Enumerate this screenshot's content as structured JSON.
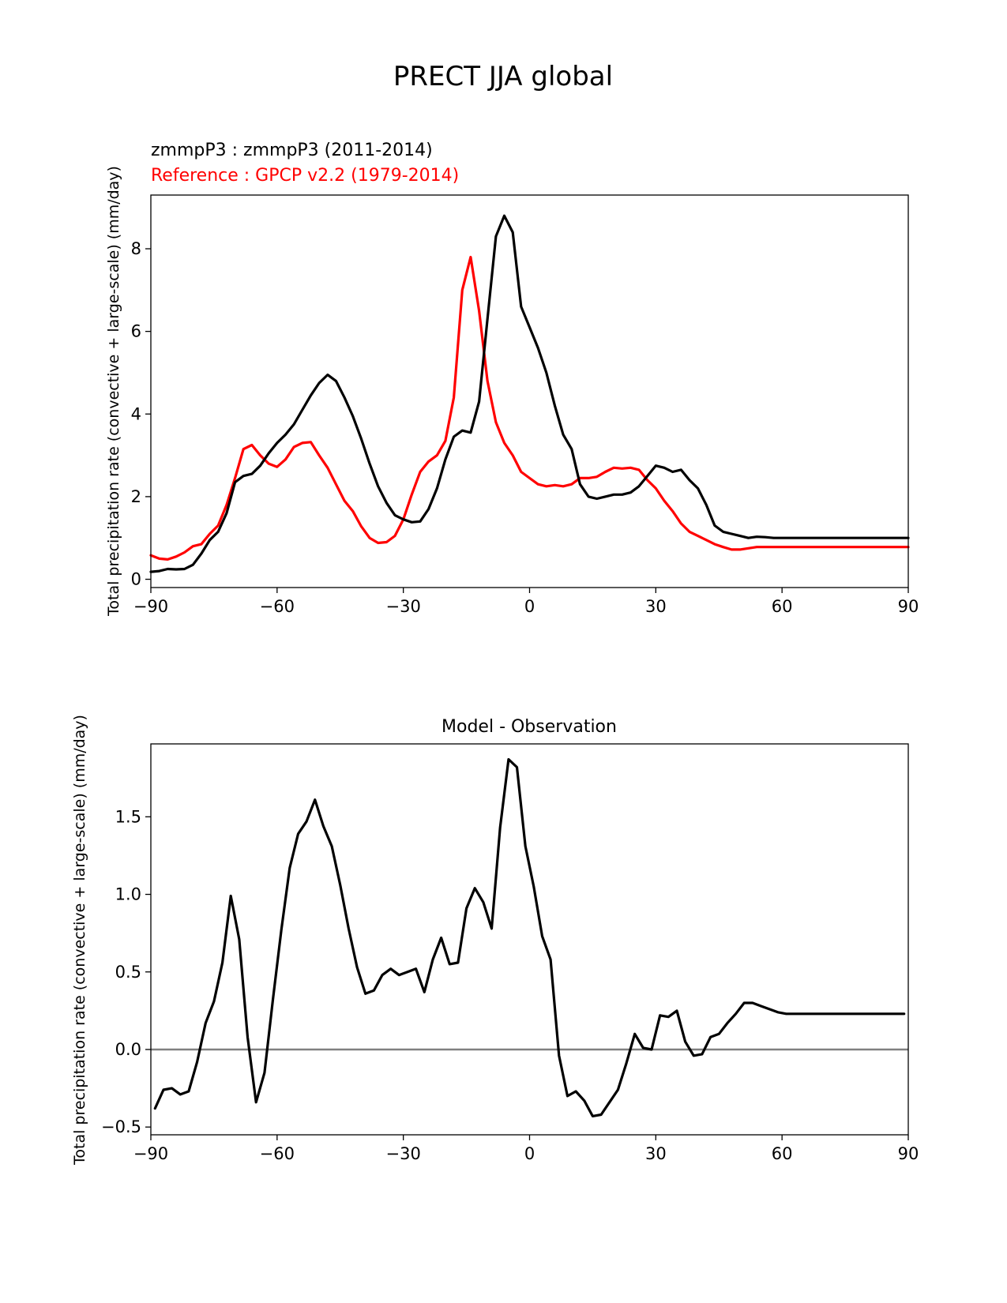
{
  "figure_title": "PRECT JJA global",
  "chart_data": [
    {
      "type": "line",
      "model_label": "zmmpP3 : zmmpP3 (2011-2014)",
      "reference_label": "Reference : GPCP v2.2 (1979-2014)",
      "ylabel": "Total precipitation rate (convective + large-scale) (mm/day)",
      "xlabel": "",
      "xlim": [
        -90,
        90
      ],
      "ylim": [
        -0.2,
        9.3
      ],
      "xticks": [
        -90,
        -60,
        -30,
        0,
        30,
        60,
        90
      ],
      "xtick_labels": [
        "−90",
        "−60",
        "−30",
        "0",
        "30",
        "60",
        "90"
      ],
      "yticks": [
        0,
        2,
        4,
        6,
        8
      ],
      "ytick_labels": [
        "0",
        "2",
        "4",
        "6",
        "8"
      ],
      "series": [
        {
          "name": "zmmpP3 (2011-2014)",
          "color": "#000000",
          "x": [
            -90,
            -88,
            -86,
            -84,
            -82,
            -80,
            -78,
            -76,
            -74,
            -72,
            -70,
            -68,
            -66,
            -64,
            -62,
            -60,
            -58,
            -56,
            -54,
            -52,
            -50,
            -48,
            -46,
            -44,
            -42,
            -40,
            -38,
            -36,
            -34,
            -32,
            -30,
            -28,
            -26,
            -24,
            -22,
            -20,
            -18,
            -16,
            -14,
            -12,
            -10,
            -8,
            -6,
            -4,
            -2,
            0,
            2,
            4,
            6,
            8,
            10,
            12,
            14,
            16,
            18,
            20,
            22,
            24,
            26,
            28,
            30,
            32,
            34,
            36,
            38,
            40,
            42,
            44,
            46,
            48,
            50,
            52,
            54,
            56,
            58,
            60,
            62,
            64,
            66,
            68,
            70,
            72,
            74,
            76,
            78,
            80,
            82,
            84,
            86,
            88,
            90
          ],
          "y": [
            0.18,
            0.2,
            0.25,
            0.24,
            0.25,
            0.35,
            0.62,
            0.95,
            1.15,
            1.6,
            2.35,
            2.5,
            2.55,
            2.75,
            3.05,
            3.3,
            3.5,
            3.75,
            4.1,
            4.45,
            4.75,
            4.95,
            4.8,
            4.4,
            3.95,
            3.4,
            2.8,
            2.25,
            1.85,
            1.55,
            1.45,
            1.38,
            1.4,
            1.7,
            2.2,
            2.9,
            3.45,
            3.6,
            3.55,
            4.3,
            6.3,
            8.3,
            8.8,
            8.4,
            6.6,
            6.1,
            5.6,
            5.0,
            4.2,
            3.5,
            3.15,
            2.3,
            2.0,
            1.95,
            2.0,
            2.05,
            2.05,
            2.1,
            2.25,
            2.5,
            2.75,
            2.7,
            2.6,
            2.65,
            2.4,
            2.2,
            1.8,
            1.3,
            1.15,
            1.1,
            1.05,
            1.0,
            1.03,
            1.02,
            1.0,
            1.0,
            1.0,
            1.0,
            1.0,
            1.0,
            1.0,
            1.0,
            1.0,
            1.0,
            1.0,
            1.0,
            1.0,
            1.0,
            1.0,
            1.0,
            1.0
          ]
        },
        {
          "name": "GPCP v2.2 (1979-2014)",
          "color": "#ff0000",
          "x": [
            -90,
            -88,
            -86,
            -84,
            -82,
            -80,
            -78,
            -76,
            -74,
            -72,
            -70,
            -68,
            -66,
            -64,
            -62,
            -60,
            -58,
            -56,
            -54,
            -52,
            -50,
            -48,
            -46,
            -44,
            -42,
            -40,
            -38,
            -36,
            -34,
            -32,
            -30,
            -28,
            -26,
            -24,
            -22,
            -20,
            -18,
            -16,
            -14,
            -12,
            -10,
            -8,
            -6,
            -4,
            -2,
            0,
            2,
            4,
            6,
            8,
            10,
            12,
            14,
            16,
            18,
            20,
            22,
            24,
            26,
            28,
            30,
            32,
            34,
            36,
            38,
            40,
            42,
            44,
            46,
            48,
            50,
            52,
            54,
            56,
            58,
            60,
            62,
            64,
            66,
            68,
            70,
            72,
            74,
            76,
            78,
            80,
            82,
            84,
            86,
            88,
            90
          ],
          "y": [
            0.58,
            0.5,
            0.48,
            0.55,
            0.65,
            0.8,
            0.85,
            1.1,
            1.3,
            1.8,
            2.45,
            3.15,
            3.25,
            3.0,
            2.8,
            2.72,
            2.9,
            3.2,
            3.3,
            3.32,
            3.0,
            2.7,
            2.3,
            1.9,
            1.65,
            1.28,
            1.0,
            0.88,
            0.9,
            1.05,
            1.45,
            2.05,
            2.6,
            2.85,
            3.0,
            3.35,
            4.4,
            7.0,
            7.8,
            6.5,
            4.8,
            3.8,
            3.3,
            3.0,
            2.6,
            2.45,
            2.3,
            2.25,
            2.28,
            2.25,
            2.3,
            2.45,
            2.45,
            2.48,
            2.6,
            2.7,
            2.68,
            2.7,
            2.65,
            2.4,
            2.2,
            1.9,
            1.65,
            1.35,
            1.15,
            1.05,
            0.95,
            0.85,
            0.78,
            0.72,
            0.72,
            0.75,
            0.78,
            0.78,
            0.78,
            0.78,
            0.78,
            0.78,
            0.78,
            0.78,
            0.78,
            0.78,
            0.78,
            0.78,
            0.78,
            0.78,
            0.78,
            0.78,
            0.78,
            0.78,
            0.78
          ]
        }
      ]
    },
    {
      "type": "line",
      "title": "Model - Observation",
      "ylabel": "Total precipitation rate (convective + large-scale) (mm/day)",
      "xlabel": "",
      "xlim": [
        -90,
        90
      ],
      "ylim": [
        -0.55,
        1.97
      ],
      "xticks": [
        -90,
        -60,
        -30,
        0,
        30,
        60,
        90
      ],
      "xtick_labels": [
        "−90",
        "−60",
        "−30",
        "0",
        "30",
        "60",
        "90"
      ],
      "yticks": [
        -0.5,
        0.0,
        0.5,
        1.0,
        1.5
      ],
      "ytick_labels": [
        "−0.5",
        "0.0",
        "0.5",
        "1.0",
        "1.5"
      ],
      "zero_line_color": "#808080",
      "series": [
        {
          "name": "Model - Observation",
          "color": "#000000",
          "x": [
            -89,
            -87,
            -85,
            -83,
            -81,
            -79,
            -77,
            -75,
            -73,
            -71,
            -69,
            -67,
            -65,
            -63,
            -61,
            -59,
            -57,
            -55,
            -53,
            -51,
            -49,
            -47,
            -45,
            -43,
            -41,
            -39,
            -37,
            -35,
            -33,
            -31,
            -29,
            -27,
            -25,
            -23,
            -21,
            -19,
            -17,
            -15,
            -13,
            -11,
            -9,
            -7,
            -5,
            -3,
            -1,
            1,
            3,
            5,
            7,
            9,
            11,
            13,
            15,
            17,
            19,
            21,
            23,
            25,
            27,
            29,
            31,
            33,
            35,
            37,
            39,
            41,
            43,
            45,
            47,
            49,
            51,
            53,
            55,
            57,
            59,
            61,
            63,
            65,
            67,
            69,
            71,
            73,
            75,
            77,
            79,
            81,
            83,
            85,
            87,
            89
          ],
          "y": [
            -0.38,
            -0.26,
            -0.25,
            -0.29,
            -0.27,
            -0.08,
            0.17,
            0.31,
            0.56,
            0.99,
            0.71,
            0.08,
            -0.34,
            -0.15,
            0.32,
            0.77,
            1.17,
            1.39,
            1.47,
            1.61,
            1.44,
            1.31,
            1.06,
            0.78,
            0.53,
            0.36,
            0.38,
            0.48,
            0.52,
            0.48,
            0.5,
            0.52,
            0.37,
            0.58,
            0.72,
            0.55,
            0.56,
            0.91,
            1.04,
            0.95,
            0.78,
            1.43,
            1.87,
            1.82,
            1.31,
            1.05,
            0.73,
            0.58,
            -0.04,
            -0.3,
            -0.27,
            -0.33,
            -0.43,
            -0.42,
            -0.34,
            -0.26,
            -0.09,
            0.1,
            0.01,
            0.0,
            0.22,
            0.21,
            0.25,
            0.05,
            -0.04,
            -0.03,
            0.08,
            0.1,
            0.17,
            0.23,
            0.3,
            0.3,
            0.28,
            0.26,
            0.24,
            0.23,
            0.23,
            0.23,
            0.23,
            0.23,
            0.23,
            0.23,
            0.23,
            0.23,
            0.23,
            0.23,
            0.23,
            0.23,
            0.23,
            0.23
          ]
        }
      ]
    }
  ]
}
